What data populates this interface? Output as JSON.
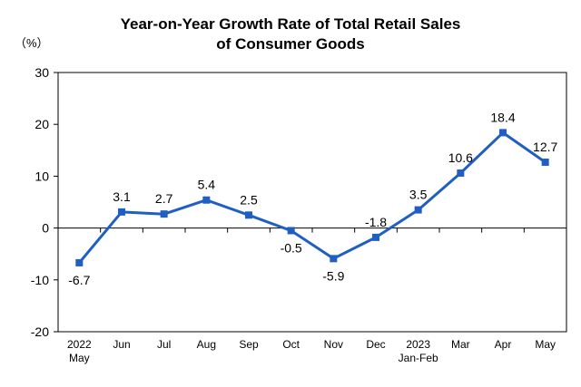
{
  "chart_data": {
    "type": "line",
    "title_lines": [
      "Year-on-Year Growth Rate of Total Retail Sales",
      "of Consumer Goods"
    ],
    "unit_label": "（%）",
    "categories": [
      [
        "2022",
        "May"
      ],
      [
        "Jun"
      ],
      [
        "Jul"
      ],
      [
        "Aug"
      ],
      [
        "Sep"
      ],
      [
        "Oct"
      ],
      [
        "Nov"
      ],
      [
        "Dec"
      ],
      [
        "2023",
        "Jan-Feb"
      ],
      [
        "Mar"
      ],
      [
        "Apr"
      ],
      [
        "May"
      ]
    ],
    "series": [
      {
        "values": [
          -6.7,
          3.1,
          2.7,
          5.4,
          2.5,
          -0.5,
          -5.9,
          -1.8,
          3.5,
          10.6,
          18.4,
          12.7
        ],
        "data_labels": [
          "-6.7",
          "3.1",
          "2.7",
          "5.4",
          "2.5",
          "-0.5",
          "-5.9",
          "-1.8",
          "3.5",
          "10.6",
          "18.4",
          "12.7"
        ],
        "label_positions": [
          "below",
          "above",
          "above",
          "above",
          "above",
          "below",
          "below",
          "above",
          "above",
          "above",
          "above",
          "above"
        ],
        "color": "#1F5FC2"
      }
    ],
    "ylim": [
      -20,
      30
    ],
    "yticks": [
      -20,
      -10,
      0,
      10,
      20,
      30
    ],
    "grid": false,
    "legend": "none"
  }
}
